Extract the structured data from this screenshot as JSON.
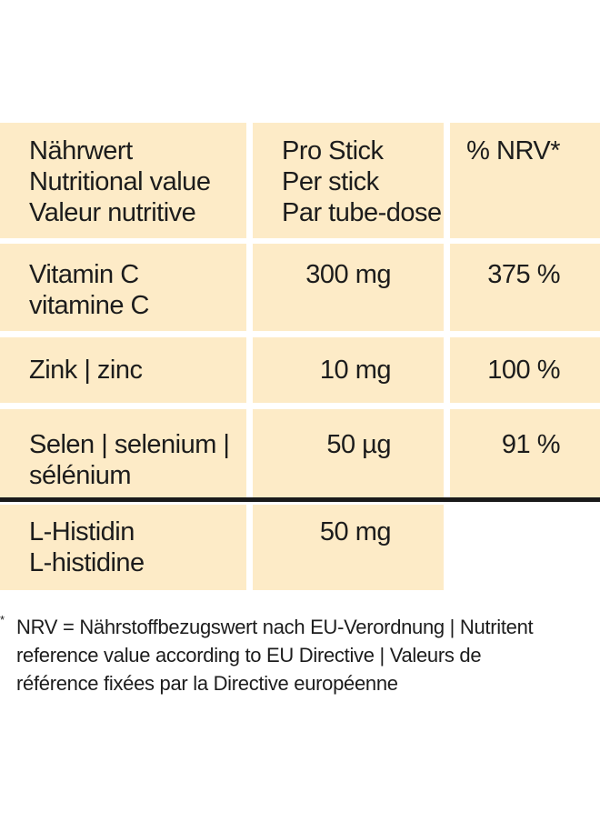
{
  "header": {
    "nutrient": [
      "Nährwert",
      "Nutritional value",
      "Valeur nutritive"
    ],
    "per_stick": [
      "Pro Stick",
      "Per stick",
      "Par tube-dose"
    ],
    "nrv": "% NRV*"
  },
  "rows": [
    {
      "nutrient": [
        "Vitamin C",
        "vitamine C"
      ],
      "amount": "300 mg",
      "nrv": "375 %"
    },
    {
      "nutrient": [
        "Zink | zinc"
      ],
      "amount": "10 mg",
      "nrv": "100 %"
    },
    {
      "nutrient": [
        "Selen | selenium |",
        "sélénium"
      ],
      "amount": "50 µg",
      "nrv": "91 %"
    }
  ],
  "other": {
    "nutrient": [
      "L-Histidin",
      "L-histidine"
    ],
    "amount": "50 mg"
  },
  "footnote": {
    "marker": "*",
    "lines": [
      "NRV = Nährstoffbezugswert nach EU-Verordnung | Nutritent",
      "reference value according to EU Directive | Valeurs de",
      "référence fixées par la Directive européenne"
    ]
  },
  "colors": {
    "cell_background": "#fdebc7",
    "divider": "#1a1a1a",
    "text": "#1c1c1c"
  }
}
